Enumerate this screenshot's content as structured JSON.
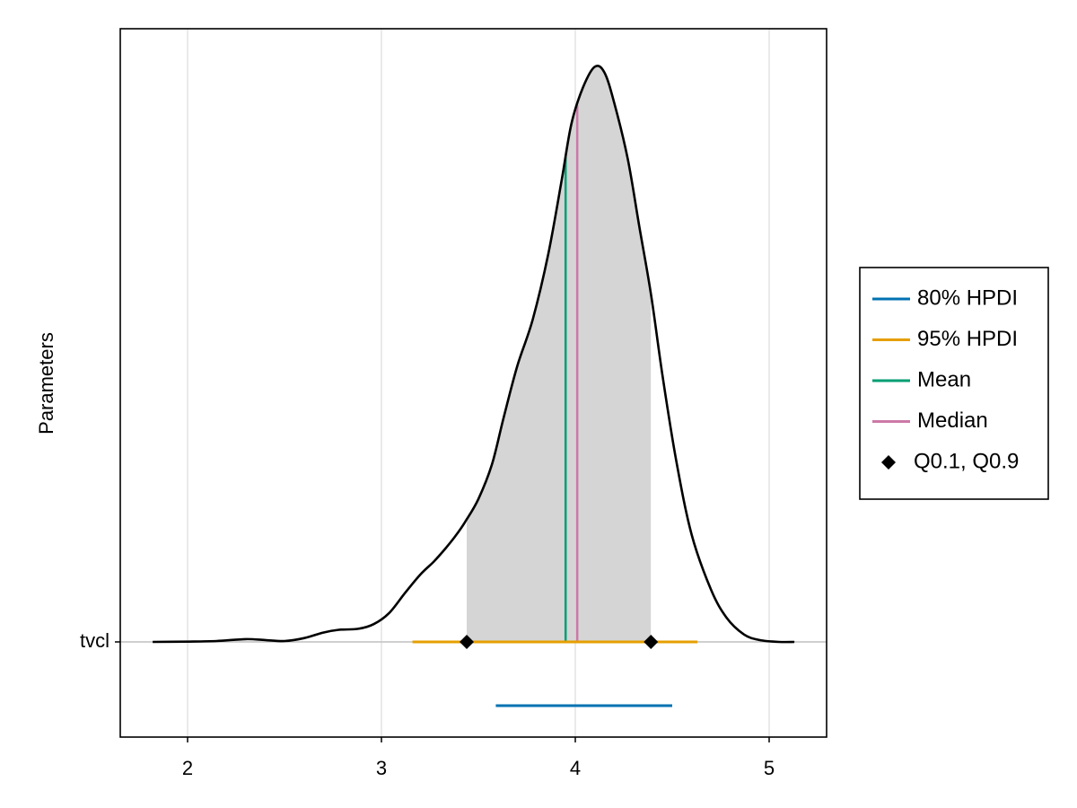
{
  "chart_data": {
    "type": "density",
    "xlabel": "",
    "ylabel": "Parameters",
    "xlim": [
      1.65,
      5.3
    ],
    "x_ticks": [
      2,
      3,
      4,
      5
    ],
    "grid": true,
    "categories": [
      "tvcl"
    ],
    "density": {
      "name": "tvcl",
      "x": [
        1.82,
        2.0,
        2.15,
        2.3,
        2.4,
        2.5,
        2.6,
        2.7,
        2.78,
        2.88,
        2.96,
        3.04,
        3.12,
        3.2,
        3.27,
        3.33,
        3.38,
        3.43,
        3.5,
        3.57,
        3.63,
        3.7,
        3.78,
        3.86,
        3.93,
        3.98,
        4.04,
        4.1,
        4.15,
        4.2,
        4.27,
        4.33,
        4.39,
        4.45,
        4.52,
        4.6,
        4.7,
        4.78,
        4.87,
        4.95,
        5.05,
        5.13
      ],
      "y": [
        0.0,
        0.003,
        0.01,
        0.03,
        0.02,
        0.01,
        0.04,
        0.1,
        0.13,
        0.14,
        0.19,
        0.31,
        0.52,
        0.72,
        0.86,
        1.0,
        1.13,
        1.28,
        1.53,
        1.9,
        2.4,
        2.95,
        3.45,
        4.15,
        4.95,
        5.55,
        5.94,
        6.16,
        6.1,
        5.78,
        5.18,
        4.45,
        3.73,
        2.85,
        1.95,
        1.15,
        0.56,
        0.26,
        0.08,
        0.02,
        0.0,
        0.0
      ],
      "shade_range": [
        3.44,
        4.39
      ]
    },
    "mean": 3.95,
    "median": 4.01,
    "quantiles": [
      3.44,
      4.39
    ],
    "hpdi_80": [
      3.59,
      4.5
    ],
    "hpdi_95": [
      3.16,
      4.63
    ],
    "legend_position": "right",
    "legend": [
      {
        "label": "80% HPDI",
        "color": "#0072b2",
        "marker": "line"
      },
      {
        "label": "95% HPDI",
        "color": "#e69f00",
        "marker": "line"
      },
      {
        "label": "Mean",
        "color": "#009e73",
        "marker": "line"
      },
      {
        "label": "Median",
        "color": "#cc79a7",
        "marker": "line"
      },
      {
        "label": "Q0.1, Q0.9",
        "color": "#000000",
        "marker": "diamond"
      }
    ],
    "colors": {
      "density_fill": "#d5d5d5",
      "density_line": "#000000",
      "grid": "#e3e3e3",
      "baseline": "#c8c8c8"
    }
  }
}
